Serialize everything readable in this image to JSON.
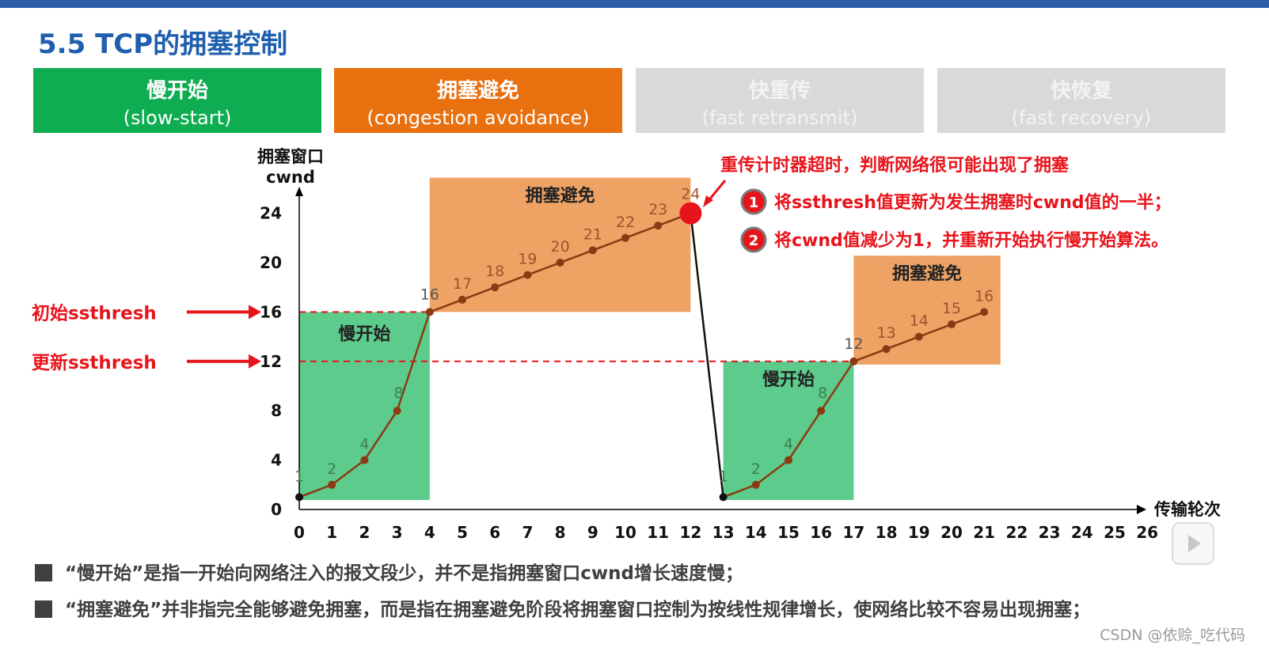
{
  "title": "5.5 TCP的拥塞控制",
  "phases": [
    {
      "zh": "慢开始",
      "en": "(slow-start)"
    },
    {
      "zh": "拥塞避免",
      "en": "(congestion avoidance)"
    },
    {
      "zh": "快重传",
      "en": "(fast retransmit)"
    },
    {
      "zh": "快恢复",
      "en": "(fast recovery)"
    }
  ],
  "notes": [
    "“慢开始”是指一开始向网络注入的报文段少，并不是指拥塞窗口cwnd增长速度慢；",
    "“拥塞避免”并非指完全能够避免拥塞，而是指在拥塞避免阶段将拥塞窗口控制为按线性规律增长，使网络比较不容易出现拥塞；"
  ],
  "watermark": "CSDN @依赊_吃代码",
  "colors": {
    "green": "#0ead51",
    "orange": "#e8700f",
    "grey": "#d9d9d9",
    "red": "#e8141c",
    "line": "#8b3a13",
    "title": "#1f5fae"
  },
  "chart_data": {
    "type": "line",
    "ylabel_line1": "拥塞窗口",
    "ylabel_line2": "cwnd",
    "xlabel": "传输轮次",
    "xlim": [
      0,
      26
    ],
    "ylim": [
      0,
      24
    ],
    "xticks": [
      0,
      1,
      2,
      3,
      4,
      5,
      6,
      7,
      8,
      9,
      10,
      11,
      12,
      13,
      14,
      15,
      16,
      17,
      18,
      19,
      20,
      21,
      22,
      23,
      24,
      25,
      26
    ],
    "yticks": [
      0,
      4,
      8,
      12,
      16,
      20,
      24
    ],
    "points": [
      {
        "x": 0,
        "y": 1,
        "label": "1"
      },
      {
        "x": 1,
        "y": 2,
        "label": "2"
      },
      {
        "x": 2,
        "y": 4,
        "label": "4"
      },
      {
        "x": 3,
        "y": 8,
        "label": "8"
      },
      {
        "x": 4,
        "y": 16,
        "label": "16"
      },
      {
        "x": 5,
        "y": 17,
        "label": "17"
      },
      {
        "x": 6,
        "y": 18,
        "label": "18"
      },
      {
        "x": 7,
        "y": 19,
        "label": "19"
      },
      {
        "x": 8,
        "y": 20,
        "label": "20"
      },
      {
        "x": 9,
        "y": 21,
        "label": "21"
      },
      {
        "x": 10,
        "y": 22,
        "label": "22"
      },
      {
        "x": 11,
        "y": 23,
        "label": "23"
      },
      {
        "x": 12,
        "y": 24,
        "label": "24"
      },
      {
        "x": 13,
        "y": 1,
        "label": "1"
      },
      {
        "x": 14,
        "y": 2,
        "label": "2"
      },
      {
        "x": 15,
        "y": 4,
        "label": "4"
      },
      {
        "x": 16,
        "y": 8,
        "label": "8"
      },
      {
        "x": 17,
        "y": 12,
        "label": "12"
      },
      {
        "x": 18,
        "y": 13,
        "label": "13"
      },
      {
        "x": 19,
        "y": 14,
        "label": "14"
      },
      {
        "x": 20,
        "y": 15,
        "label": "15"
      },
      {
        "x": 21,
        "y": 16,
        "label": "16"
      }
    ],
    "regions": [
      {
        "label": "慢开始",
        "x0": 0,
        "x1": 4,
        "y0": 0,
        "y1": 16,
        "color": "green"
      },
      {
        "label": "拥塞避免",
        "x0": 4,
        "x1": 12,
        "y0": 16,
        "y1": 24,
        "color": "orange"
      },
      {
        "label": "慢开始",
        "x0": 13,
        "x1": 17,
        "y0": 0,
        "y1": 12,
        "color": "green"
      },
      {
        "label": "拥塞避免",
        "x0": 17,
        "x1": 21.5,
        "y0": 12,
        "y1": 18,
        "color": "orange"
      }
    ],
    "thresholds": [
      {
        "label": "初始ssthresh",
        "y": 16,
        "x_end": 4
      },
      {
        "label": "更新ssthresh",
        "y": 12,
        "x_end": 17
      }
    ],
    "timeout_point": {
      "x": 12,
      "y": 24
    },
    "annotation_title": "重传计时器超时，判断网络很可能出现了拥塞",
    "annotation_items": [
      {
        "num": "1",
        "text": "将ssthresh值更新为发生拥塞时cwnd值的一半；"
      },
      {
        "num": "2",
        "text": "将cwnd值减少为1，并重新开始执行慢开始算法。"
      }
    ]
  }
}
